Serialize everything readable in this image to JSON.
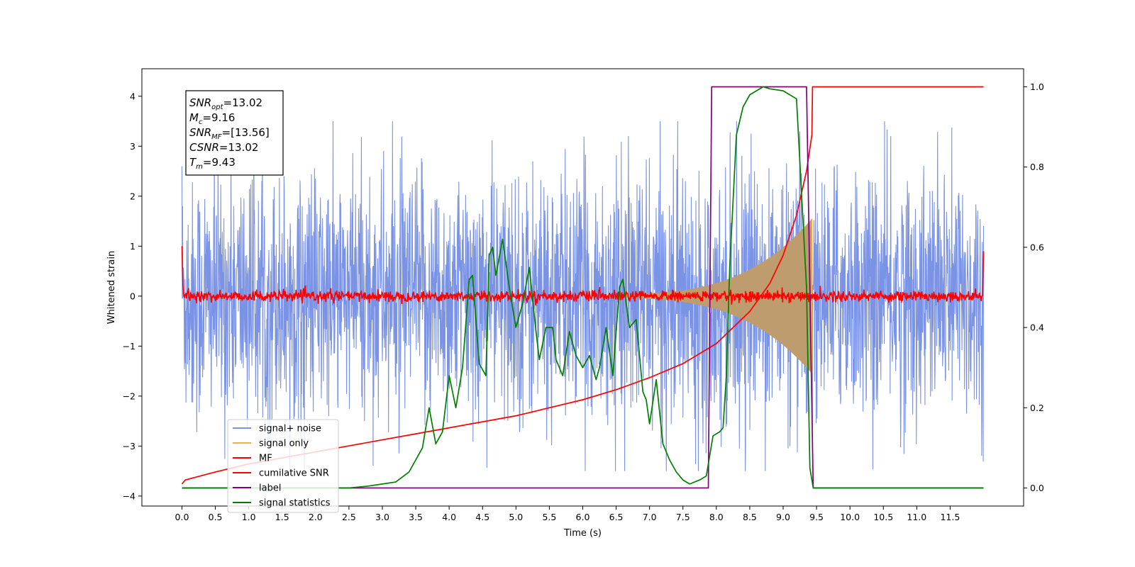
{
  "chart_data": {
    "type": "line",
    "xlabel": "Time (s)",
    "ylabel": "Whitened strain",
    "xlim": [
      -0.6,
      12.6
    ],
    "ylim": [
      -4.2,
      4.55
    ],
    "y2lim": [
      -0.045,
      1.045
    ],
    "x_ticks": [
      "0.0",
      "0.5",
      "1.0",
      "1.5",
      "2.0",
      "2.5",
      "3.0",
      "3.5",
      "4.0",
      "4.5",
      "5.0",
      "5.5",
      "6.0",
      "6.5",
      "7.0",
      "7.5",
      "8.0",
      "8.5",
      "9.0",
      "9.5",
      "10.0",
      "10.5",
      "11.0",
      "11.5"
    ],
    "y_ticks": [
      "4",
      "3",
      "2",
      "1",
      "0",
      "−1",
      "−2",
      "−3",
      "−4"
    ],
    "y2_ticks": [
      "1.0",
      "0.8",
      "0.6",
      "0.4",
      "0.2",
      "0.0"
    ],
    "annotation": [
      {
        "sym": "SNR",
        "sub": "opt",
        "value": "=13.02"
      },
      {
        "sym": "M",
        "sub": "c",
        "value": "=9.16"
      },
      {
        "sym": "SNR",
        "sub": "MF",
        "value": "=[13.56]"
      },
      {
        "sym": "CSNR",
        "sub": "",
        "value": "=13.02"
      },
      {
        "sym": "T",
        "sub": "m",
        "value": "=9.43"
      }
    ],
    "legend_position": "lower-left",
    "series": [
      {
        "name": "signal+ noise",
        "color": "#7b93e5",
        "kind": "noise",
        "axis": "left",
        "envelope": 2.2,
        "peak": 3.5,
        "range": [
          0.0,
          12.0
        ]
      },
      {
        "name": "signal only",
        "color": "#f5b041",
        "kind": "chirp",
        "axis": "left",
        "start": 6.5,
        "end": 9.43,
        "final_amplitude": 1.55,
        "fill": "#bf9c6e"
      },
      {
        "name": "MF",
        "color": "#ff0000",
        "kind": "noise",
        "axis": "left",
        "envelope": 0.1,
        "range": [
          0.0,
          12.0
        ],
        "edge_values": [
          1.0,
          0.9
        ]
      },
      {
        "name": "cumilative SNR",
        "color": "#ff0000",
        "kind": "line",
        "axis": "right",
        "x": [
          0.0,
          0.05,
          0.5,
          1.0,
          1.5,
          2.0,
          2.5,
          3.0,
          3.5,
          4.0,
          4.5,
          5.0,
          5.5,
          6.0,
          6.5,
          7.0,
          7.5,
          8.0,
          8.5,
          8.8,
          9.0,
          9.2,
          9.35,
          9.43,
          9.44,
          12.0
        ],
        "y": [
          0.01,
          0.02,
          0.04,
          0.06,
          0.075,
          0.09,
          0.105,
          0.12,
          0.135,
          0.15,
          0.165,
          0.18,
          0.2,
          0.22,
          0.245,
          0.275,
          0.31,
          0.36,
          0.44,
          0.51,
          0.58,
          0.68,
          0.79,
          0.88,
          1.0,
          1.0
        ]
      },
      {
        "name": "label",
        "color": "#800080",
        "kind": "line",
        "axis": "right",
        "x": [
          0.0,
          7.88,
          7.93,
          9.35,
          9.45,
          12.0
        ],
        "y": [
          0.0,
          0.0,
          1.0,
          1.0,
          0.0,
          0.0
        ]
      },
      {
        "name": "signal statistics",
        "color": "#008000",
        "kind": "line",
        "axis": "right",
        "x": [
          0.0,
          1.0,
          2.0,
          2.5,
          2.8,
          3.0,
          3.2,
          3.4,
          3.6,
          3.7,
          3.8,
          3.9,
          4.0,
          4.1,
          4.2,
          4.3,
          4.35,
          4.45,
          4.55,
          4.6,
          4.65,
          4.7,
          4.8,
          4.9,
          5.0,
          5.1,
          5.2,
          5.3,
          5.35,
          5.45,
          5.55,
          5.6,
          5.7,
          5.8,
          5.9,
          6.0,
          6.1,
          6.2,
          6.25,
          6.35,
          6.45,
          6.55,
          6.6,
          6.7,
          6.75,
          6.8,
          6.9,
          6.95,
          7.0,
          7.1,
          7.2,
          7.3,
          7.4,
          7.5,
          7.6,
          7.75,
          7.85,
          7.95,
          8.05,
          8.1,
          8.15,
          8.2,
          8.3,
          8.4,
          8.5,
          8.6,
          8.7,
          8.8,
          9.0,
          9.2,
          9.35,
          9.4,
          9.45,
          9.5,
          9.55,
          12.0
        ],
        "y": [
          0.0,
          0.0,
          0.0,
          0.0,
          0.005,
          0.01,
          0.015,
          0.04,
          0.1,
          0.2,
          0.11,
          0.14,
          0.28,
          0.2,
          0.3,
          0.52,
          0.53,
          0.31,
          0.28,
          0.58,
          0.6,
          0.53,
          0.62,
          0.5,
          0.4,
          0.46,
          0.55,
          0.39,
          0.32,
          0.4,
          0.4,
          0.32,
          0.28,
          0.39,
          0.33,
          0.3,
          0.33,
          0.27,
          0.3,
          0.4,
          0.28,
          0.5,
          0.52,
          0.4,
          0.41,
          0.42,
          0.24,
          0.22,
          0.16,
          0.27,
          0.11,
          0.07,
          0.04,
          0.02,
          0.01,
          0.02,
          0.03,
          0.13,
          0.14,
          0.15,
          0.28,
          0.55,
          0.88,
          0.95,
          0.98,
          0.99,
          1.0,
          0.995,
          0.99,
          0.97,
          0.5,
          0.05,
          0.0,
          0.0,
          0.0,
          0.0
        ]
      }
    ]
  }
}
